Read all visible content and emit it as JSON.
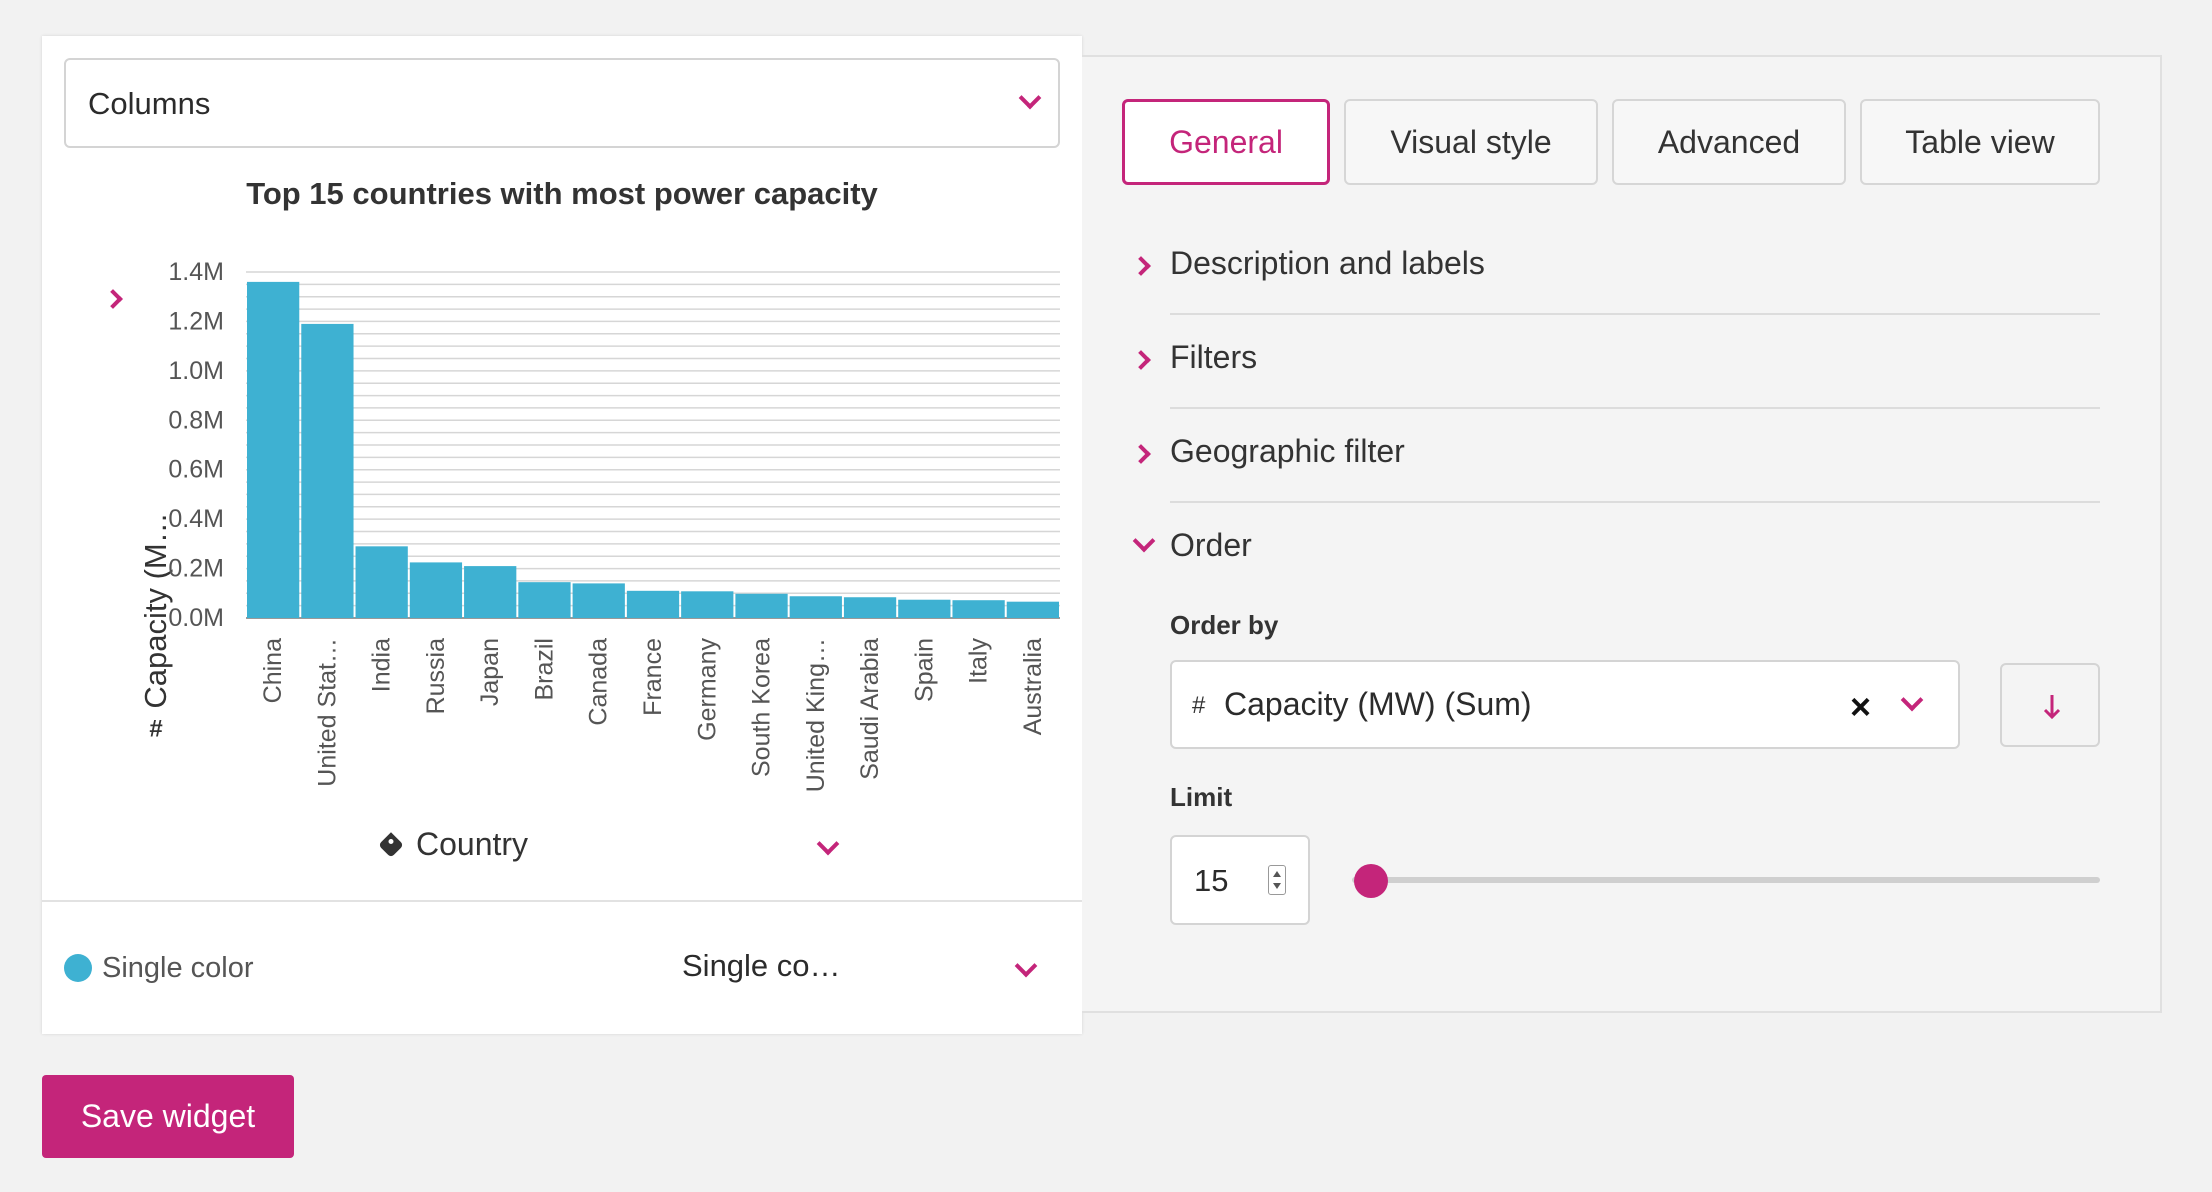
{
  "widget": {
    "type_select": "Columns",
    "x_field": "Country",
    "color": {
      "mode_label": "Single color",
      "select_value": "Single co…",
      "dot_color": "#3eb1d2"
    }
  },
  "chart_data": {
    "type": "bar",
    "title": "Top 15 countries with most power capacity",
    "ylabel": "Capacity (M…",
    "xlabel": "Country",
    "categories": [
      "China",
      "United Stat…",
      "India",
      "Russia",
      "Japan",
      "Brazil",
      "Canada",
      "France",
      "Germany",
      "South Korea",
      "United King…",
      "Saudi Arabia",
      "Spain",
      "Italy",
      "Australia"
    ],
    "values": [
      1.36,
      1.19,
      0.29,
      0.225,
      0.21,
      0.145,
      0.14,
      0.11,
      0.108,
      0.098,
      0.088,
      0.084,
      0.074,
      0.072,
      0.066
    ],
    "y_ticks": [
      "0.0M",
      "0.2M",
      "0.4M",
      "0.6M",
      "0.8M",
      "1.0M",
      "1.2M",
      "1.4M"
    ],
    "ylim": [
      0,
      1.4
    ],
    "unit": "M",
    "grid": true,
    "bar_color": "#3eb1d2"
  },
  "panel": {
    "tabs": [
      {
        "label": "General",
        "active": true
      },
      {
        "label": "Visual style",
        "active": false
      },
      {
        "label": "Advanced",
        "active": false
      },
      {
        "label": "Table view",
        "active": false
      }
    ],
    "sections": [
      {
        "label": "Description and labels",
        "expanded": false
      },
      {
        "label": "Filters",
        "expanded": false
      },
      {
        "label": "Geographic filter",
        "expanded": false
      },
      {
        "label": "Order",
        "expanded": true
      }
    ],
    "order": {
      "order_by_label": "Order by",
      "order_by_value": "Capacity (MW) (Sum)",
      "field_type_symbol": "#",
      "limit_label": "Limit",
      "limit_value": "15",
      "sort_direction": "descending"
    }
  },
  "actions": {
    "save_label": "Save widget"
  },
  "colors": {
    "accent": "#c4257a",
    "bar": "#3eb1d2"
  }
}
